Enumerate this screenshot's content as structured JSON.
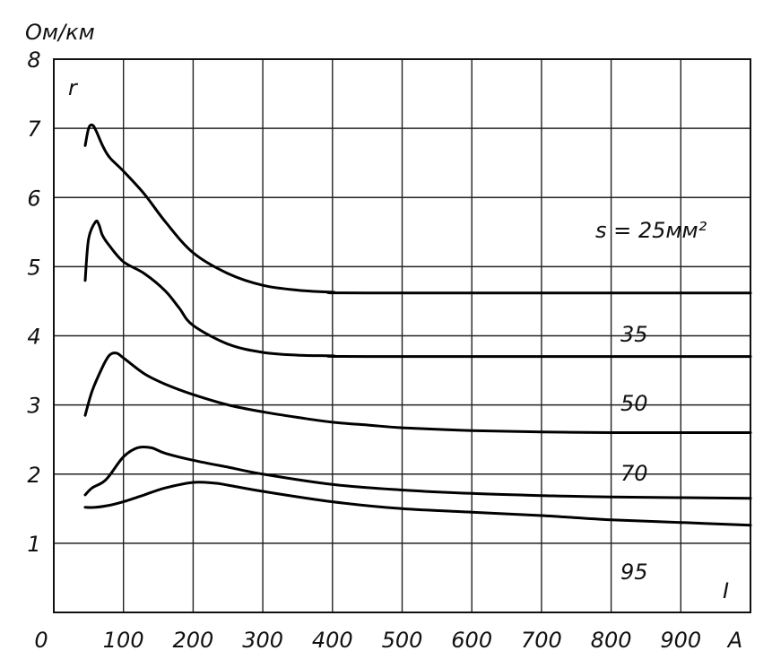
{
  "chart_data": {
    "type": "line",
    "title": "",
    "ylabel": "Ом/км",
    "ylabel_symbol": "r",
    "xlabel": "I",
    "x_unit": "A",
    "xlim": [
      0,
      1000
    ],
    "ylim": [
      0,
      8
    ],
    "grid": true,
    "x_ticks": [
      "0",
      "100",
      "200",
      "300",
      "400",
      "500",
      "600",
      "700",
      "800",
      "900",
      "A"
    ],
    "y_ticks": [
      "1",
      "2",
      "3",
      "4",
      "5",
      "6",
      "7",
      "8"
    ],
    "series": [
      {
        "name": "s = 25мм²",
        "x": [
          45,
          50,
          55,
          60,
          70,
          80,
          100,
          130,
          160,
          200,
          250,
          300,
          350,
          400,
          450,
          1000
        ],
        "y": [
          6.75,
          7.0,
          7.05,
          6.98,
          6.75,
          6.58,
          6.38,
          6.05,
          5.65,
          5.2,
          4.9,
          4.73,
          4.66,
          4.63,
          4.62,
          4.62
        ]
      },
      {
        "name": "35",
        "x": [
          45,
          50,
          60,
          65,
          70,
          80,
          100,
          130,
          160,
          180,
          200,
          250,
          300,
          350,
          400,
          450,
          1000
        ],
        "y": [
          4.8,
          5.4,
          5.65,
          5.6,
          5.45,
          5.3,
          5.07,
          4.9,
          4.65,
          4.4,
          4.15,
          3.88,
          3.76,
          3.72,
          3.71,
          3.7,
          3.7
        ]
      },
      {
        "name": "50",
        "x": [
          45,
          55,
          70,
          80,
          90,
          100,
          130,
          160,
          200,
          250,
          300,
          350,
          400,
          450,
          500,
          600,
          700,
          800,
          1000
        ],
        "y": [
          2.85,
          3.2,
          3.55,
          3.72,
          3.75,
          3.68,
          3.45,
          3.3,
          3.15,
          3.0,
          2.9,
          2.82,
          2.75,
          2.71,
          2.67,
          2.63,
          2.61,
          2.6,
          2.6
        ]
      },
      {
        "name": "70",
        "x": [
          45,
          55,
          70,
          80,
          100,
          120,
          140,
          160,
          200,
          250,
          300,
          400,
          500,
          600,
          700,
          800,
          1000
        ],
        "y": [
          1.7,
          1.8,
          1.88,
          1.98,
          2.25,
          2.38,
          2.38,
          2.3,
          2.2,
          2.1,
          2.0,
          1.85,
          1.77,
          1.72,
          1.69,
          1.67,
          1.65
        ]
      },
      {
        "name": "95",
        "x": [
          45,
          60,
          80,
          100,
          130,
          160,
          200,
          230,
          250,
          300,
          400,
          500,
          600,
          700,
          800,
          900,
          1000
        ],
        "y": [
          1.52,
          1.52,
          1.55,
          1.6,
          1.7,
          1.8,
          1.88,
          1.87,
          1.84,
          1.75,
          1.6,
          1.5,
          1.45,
          1.4,
          1.34,
          1.3,
          1.26
        ]
      }
    ]
  }
}
